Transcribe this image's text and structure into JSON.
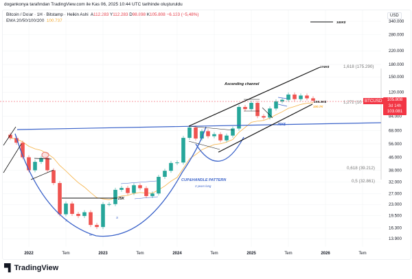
{
  "header": {
    "caption": "dogankonya tarafından TradingView.com ile Kas 06, 2025 10:44 UTC tarihinde oluşturuldu",
    "symbol_line": "Bitcoin / Dolar · 1H · Bitstamp · Heikin Ashi",
    "ohlc": {
      "o_label": "A",
      "o": "112.283",
      "h_label": "Y",
      "h": "112.283",
      "l_label": "D",
      "l": "98.898",
      "c_label": "K",
      "c": "105.808",
      "change": "−6.133 (−5,48%)"
    },
    "ema_label": "EMA 20/50/100/200",
    "ema_value": "100.737"
  },
  "price_axis": {
    "currency": "USD",
    "ticks": [
      "340.000",
      "280.000",
      "220.000",
      "180.000",
      "150.000",
      "120.000",
      "84.000",
      "68.000",
      "56.000",
      "46.000",
      "38.000",
      "32.000",
      "27.000",
      "23.000",
      "19.500",
      "16.300",
      "13.900"
    ],
    "symbol_tag": "BTCUSD",
    "last_price": "105.808",
    "countdown": "3d 14h",
    "prev_price": "103.081"
  },
  "time_axis": {
    "ticks": [
      "2022",
      "Tem",
      "2023",
      "Tem",
      "2024",
      "Tem",
      "2025",
      "Tem",
      "2026",
      "Tem"
    ]
  },
  "annotations": {
    "ascending_channel": "Ascending channel",
    "target_174": "174K$",
    "target_340": "340K$",
    "level_105": "105.3K$",
    "ema_tag": "100.7K",
    "level_76": "76K$",
    "level_25": "25K",
    "cup_handle": "CUP&HANDLE PATTERN",
    "cup_duration": "3 years long",
    "s1": "S",
    "m": "M",
    "s2": "S",
    "fib_1618": "1,618 (175.290)",
    "fib_1272": "1,272 (10",
    "fib_0618": "0,618 (39.212)",
    "fib_05": "0,5 (32.861)"
  },
  "colors": {
    "up": "#26a69a",
    "down": "#ef5350",
    "ema": "#f5b041",
    "pattern": "#3a62c9",
    "tag": "#f23645"
  },
  "logo": "TradingView",
  "chart_data": {
    "type": "candlestick",
    "scale": "log",
    "ylim": [
      13900,
      340000
    ],
    "grid": true,
    "dates": [
      "2021-10",
      "2021-11",
      "2021-12",
      "2022-01",
      "2022-02",
      "2022-03",
      "2022-04",
      "2022-05",
      "2022-06",
      "2022-07",
      "2022-08",
      "2022-09",
      "2022-10",
      "2022-11",
      "2022-12",
      "2023-01",
      "2023-02",
      "2023-03",
      "2023-04",
      "2023-05",
      "2023-06",
      "2023-07",
      "2023-08",
      "2023-09",
      "2023-10",
      "2023-11",
      "2023-12",
      "2024-01",
      "2024-02",
      "2024-03",
      "2024-04",
      "2024-05",
      "2024-06",
      "2024-07",
      "2024-08",
      "2024-09",
      "2024-10",
      "2024-11",
      "2024-12",
      "2025-01",
      "2025-02",
      "2025-03",
      "2025-04",
      "2025-05",
      "2025-06",
      "2025-07",
      "2025-08",
      "2025-09",
      "2025-10",
      "2025-11"
    ],
    "close": [
      61000,
      57000,
      46000,
      38000,
      43000,
      45500,
      38000,
      31500,
      19900,
      23300,
      20000,
      19400,
      20500,
      17000,
      16500,
      23100,
      23100,
      28500,
      29300,
      27200,
      30500,
      29200,
      26000,
      27000,
      34500,
      37700,
      42300,
      42600,
      61200,
      71300,
      60600,
      67500,
      62700,
      64600,
      59000,
      63300,
      70200,
      96400,
      93400,
      102400,
      84300,
      82500,
      94200,
      104600,
      107100,
      115700,
      108200,
      114000,
      109500,
      105808
    ]
  }
}
